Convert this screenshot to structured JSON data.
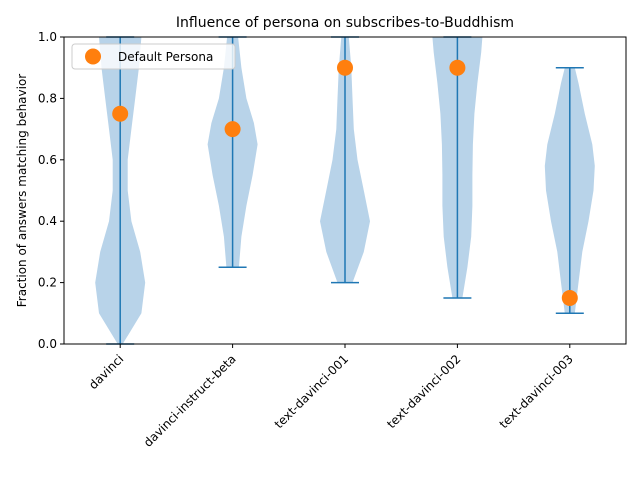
{
  "chart_data": {
    "type": "violin",
    "title": "Influence of persona on subscribes-to-Buddhism",
    "xlabel": "",
    "ylabel": "Fraction of answers matching behavior",
    "ylim": [
      0,
      1
    ],
    "yticks": [
      "0.0",
      "0.2",
      "0.4",
      "0.6",
      "0.8",
      "1.0"
    ],
    "categories": [
      "davinci",
      "davinci-instruct-beta",
      "text-davinci-001",
      "text-davinci-002",
      "text-davinci-003"
    ],
    "distributions": [
      {
        "min": 0.0,
        "max": 1.0,
        "density": [
          [
            0.0,
            0.1
          ],
          [
            0.1,
            0.85
          ],
          [
            0.2,
            1.0
          ],
          [
            0.3,
            0.8
          ],
          [
            0.4,
            0.45
          ],
          [
            0.5,
            0.3
          ],
          [
            0.6,
            0.3
          ],
          [
            0.7,
            0.45
          ],
          [
            0.8,
            0.6
          ],
          [
            0.9,
            0.75
          ],
          [
            1.0,
            0.85
          ]
        ]
      },
      {
        "min": 0.25,
        "max": 1.0,
        "density": [
          [
            0.25,
            0.25
          ],
          [
            0.35,
            0.35
          ],
          [
            0.45,
            0.55
          ],
          [
            0.55,
            0.8
          ],
          [
            0.65,
            1.0
          ],
          [
            0.72,
            0.85
          ],
          [
            0.8,
            0.55
          ],
          [
            0.9,
            0.35
          ],
          [
            1.0,
            0.22
          ]
        ]
      },
      {
        "min": 0.2,
        "max": 1.0,
        "density": [
          [
            0.2,
            0.3
          ],
          [
            0.3,
            0.75
          ],
          [
            0.4,
            1.0
          ],
          [
            0.5,
            0.75
          ],
          [
            0.6,
            0.5
          ],
          [
            0.7,
            0.35
          ],
          [
            0.8,
            0.3
          ],
          [
            0.9,
            0.25
          ],
          [
            1.0,
            0.15
          ]
        ]
      },
      {
        "min": 0.15,
        "max": 1.0,
        "density": [
          [
            0.15,
            0.2
          ],
          [
            0.25,
            0.4
          ],
          [
            0.35,
            0.55
          ],
          [
            0.45,
            0.6
          ],
          [
            0.55,
            0.6
          ],
          [
            0.65,
            0.62
          ],
          [
            0.75,
            0.68
          ],
          [
            0.85,
            0.8
          ],
          [
            0.95,
            0.95
          ],
          [
            1.0,
            1.0
          ]
        ]
      },
      {
        "min": 0.1,
        "max": 0.9,
        "density": [
          [
            0.1,
            0.2
          ],
          [
            0.2,
            0.35
          ],
          [
            0.3,
            0.5
          ],
          [
            0.4,
            0.75
          ],
          [
            0.5,
            0.95
          ],
          [
            0.58,
            1.0
          ],
          [
            0.65,
            0.9
          ],
          [
            0.75,
            0.6
          ],
          [
            0.85,
            0.35
          ],
          [
            0.9,
            0.2
          ]
        ]
      }
    ],
    "default_persona": [
      0.75,
      0.7,
      0.9,
      0.9,
      0.15
    ],
    "legend": {
      "label": "Default Persona",
      "placement": "top-left"
    },
    "colors": {
      "violin": "#a6c8e3",
      "line": "#1f77b4",
      "point": "#ff7f0e"
    }
  }
}
